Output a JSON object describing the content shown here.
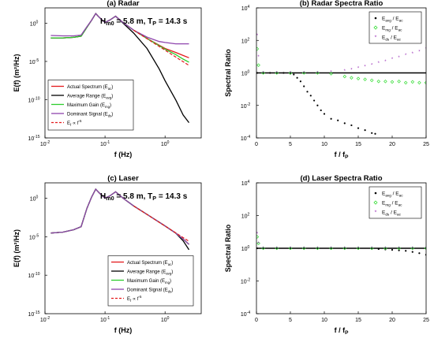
{
  "colors": {
    "actual": "#e41a1c",
    "average": "#000000",
    "max_gain": "#2ecc2e",
    "dominant": "#8e44ad",
    "f_minus5": "#e41a1c",
    "ref_line": "#000000",
    "ratio_avg": "#000000",
    "ratio_mg": "#33dd33",
    "ratio_ds": "#9b30b8"
  },
  "chart_data": [
    {
      "panel": "a",
      "type": "line",
      "title": "(a) Radar",
      "annotation": {
        "Hm0_value": "5.8 m",
        "Tp_value": "14.3 s"
      },
      "xlabel": "f (Hz)",
      "ylabel": "E(f) (m²/Hz)",
      "xscale": "log",
      "yscale": "log",
      "xlim": [
        0.01,
        4
      ],
      "ylim": [
        1e-15,
        100
      ],
      "xticks": [
        "10",
        "10",
        "10"
      ],
      "xtick_exponents": [
        "-2",
        "-1",
        "0"
      ],
      "yticks": [
        "10",
        "10",
        "10",
        "10"
      ],
      "ytick_exponents": [
        "-15",
        "-10",
        "-5",
        "0"
      ],
      "legend_position": "lower-left",
      "legend": [
        {
          "main": "Actual Spectrum (E",
          "sub": "ac",
          "end": ")"
        },
        {
          "main": "Average Range (E",
          "sub": "avg",
          "end": ")"
        },
        {
          "main": "Maximum Gain (E",
          "sub": "mg",
          "end": ")"
        },
        {
          "main": "Dominant Signal (E",
          "sub": "ds",
          "end": ")"
        },
        {
          "main": "E",
          "sub": "f",
          "end": " ∝ f",
          "sup": "-5"
        }
      ],
      "series": [
        {
          "name": "Actual Spectrum (Eac)",
          "x": [
            0.0125,
            0.02,
            0.03,
            0.04,
            0.05,
            0.06,
            0.07,
            0.08,
            0.1,
            0.12,
            0.15,
            0.2,
            0.3,
            0.5,
            1.0,
            1.5,
            2.0,
            2.5
          ],
          "y": [
            0.012,
            0.012,
            0.014,
            0.02,
            0.3,
            2.5,
            18,
            6,
            1.2,
            2.5,
            8,
            1.2,
            0.12,
            0.01,
            0.0005,
            0.00015,
            6e-05,
            3e-05
          ]
        },
        {
          "name": "Average Range (Eavg)",
          "x": [
            0.0125,
            0.02,
            0.03,
            0.04,
            0.05,
            0.06,
            0.07,
            0.08,
            0.1,
            0.12,
            0.15,
            0.2,
            0.3,
            0.5,
            0.8,
            1.0,
            1.5,
            2.0,
            2.5
          ],
          "y": [
            0.012,
            0.012,
            0.014,
            0.02,
            0.3,
            2.5,
            18,
            6,
            1.2,
            2.5,
            8,
            1.0,
            0.05,
            0.0005,
            1e-06,
            3e-08,
            1e-10,
            1e-12,
            1e-13
          ]
        },
        {
          "name": "Maximum Gain (Emg)",
          "x": [
            0.0125,
            0.02,
            0.03,
            0.04,
            0.05,
            0.06,
            0.07,
            0.08,
            0.1,
            0.12,
            0.15,
            0.2,
            0.3,
            0.5,
            1.0,
            1.5,
            2.0,
            2.5
          ],
          "y": [
            0.012,
            0.012,
            0.014,
            0.02,
            0.3,
            2.5,
            18,
            6,
            1.2,
            2.5,
            8,
            1.2,
            0.12,
            0.01,
            0.0004,
            8e-05,
            2e-05,
            8e-06
          ]
        },
        {
          "name": "Dominant Signal (Eds)",
          "x": [
            0.0125,
            0.02,
            0.03,
            0.04,
            0.05,
            0.06,
            0.07,
            0.08,
            0.1,
            0.12,
            0.15,
            0.2,
            0.3,
            0.5,
            0.8,
            1.0,
            1.5,
            2.0,
            2.5
          ],
          "y": [
            0.025,
            0.022,
            0.022,
            0.028,
            0.35,
            2.5,
            18,
            6,
            1.2,
            2.5,
            8,
            1.2,
            0.12,
            0.015,
            0.004,
            0.003,
            0.002,
            0.002,
            0.002
          ]
        },
        {
          "name": "Ef ∝ f^-5",
          "dashed": true,
          "x": [
            0.3,
            0.5,
            1.0,
            1.5,
            2.0,
            2.5
          ],
          "y": [
            0.12,
            0.0093,
            0.00029,
            3.8e-05,
            9.1e-06,
            3e-06
          ]
        }
      ]
    },
    {
      "panel": "b",
      "type": "scatter",
      "title": "(b) Radar Spectra Ratio",
      "xlabel": "f / f",
      "xlabel_sub": "P",
      "ylabel": "Spectral Ratio",
      "yscale": "log",
      "xlim": [
        0,
        25
      ],
      "ylim": [
        0.0001,
        10000.0
      ],
      "xticks": [
        0,
        5,
        10,
        15,
        20,
        25
      ],
      "yticks": [
        "10",
        "10",
        "10",
        "10",
        "10"
      ],
      "ytick_exponents": [
        "-4",
        "-2",
        "0",
        "2",
        "4"
      ],
      "legend_position": "top-right",
      "legend": [
        {
          "main": "E",
          "sub": "avg",
          "end": " / E",
          "sub2": "ac"
        },
        {
          "main": "E",
          "sub": "mg",
          "end": " / E",
          "sub2": "ac"
        },
        {
          "main": "E",
          "sub": "ds",
          "end": " / E",
          "sub2": "ac"
        }
      ],
      "reference_line": 1,
      "series": [
        {
          "name": "Eavg / Eac",
          "x": [
            0.1,
            1,
            2,
            3,
            4,
            5,
            5.5,
            6,
            6.5,
            7,
            7.5,
            8,
            8.5,
            9,
            9.5,
            10,
            11,
            12,
            13,
            14,
            15,
            16,
            17,
            17.5
          ],
          "y": [
            1,
            1,
            1,
            1,
            1,
            0.9,
            0.8,
            0.5,
            0.3,
            0.15,
            0.07,
            0.04,
            0.02,
            0.01,
            0.005,
            0.003,
            0.0015,
            0.0012,
            0.0008,
            0.0006,
            0.0004,
            0.0003,
            0.0002,
            0.00018
          ]
        },
        {
          "name": "Emg / Eac",
          "x": [
            0.1,
            0.3,
            1,
            3,
            5,
            7,
            9,
            11,
            13,
            14,
            15,
            16,
            17,
            18,
            19,
            20,
            21,
            22,
            23,
            24,
            25
          ],
          "y": [
            30,
            3,
            1,
            1,
            1,
            1,
            1,
            0.9,
            0.6,
            0.5,
            0.45,
            0.4,
            0.35,
            0.3,
            0.3,
            0.28,
            0.3,
            0.25,
            0.28,
            0.25,
            0.25
          ]
        },
        {
          "name": "Eds / Eac",
          "x": [
            0.1,
            0.3,
            1,
            3,
            5,
            7,
            9,
            11,
            13,
            14,
            15,
            16,
            17,
            18,
            19,
            20,
            21,
            22,
            23,
            24,
            25
          ],
          "y": [
            200,
            10,
            1,
            1,
            1,
            1,
            1,
            1.1,
            1.3,
            1.6,
            2,
            2.5,
            3,
            4,
            5,
            7,
            9,
            12,
            15,
            20,
            30
          ]
        }
      ]
    },
    {
      "panel": "c",
      "type": "line",
      "title": "(c) Laser",
      "annotation": {
        "Hm0_value": "5.8 m",
        "Tp_value": "14.3 s"
      },
      "xlabel": "f (Hz)",
      "ylabel": "E(f) (m²/Hz)",
      "xscale": "log",
      "yscale": "log",
      "xlim": [
        0.01,
        4
      ],
      "ylim": [
        1e-15,
        100
      ],
      "xticks": [
        "10",
        "10",
        "10"
      ],
      "xtick_exponents": [
        "-2",
        "-1",
        "0"
      ],
      "yticks": [
        "10",
        "10",
        "10",
        "10"
      ],
      "ytick_exponents": [
        "-15",
        "-10",
        "-5",
        "0"
      ],
      "legend_position": "lower-right",
      "legend": [
        {
          "main": "Actual Spectrum (E",
          "sub": "ac",
          "end": ")"
        },
        {
          "main": "Average Range (E",
          "sub": "avg",
          "end": ")"
        },
        {
          "main": "Maximum Gain (E",
          "sub": "mg",
          "end": ")"
        },
        {
          "main": "Dominant Signal (E",
          "sub": "ds",
          "end": ")"
        },
        {
          "main": "E",
          "sub": "f",
          "end": " ∝ f",
          "sup": "-5"
        }
      ],
      "series": [
        {
          "name": "Actual Spectrum (Eac)",
          "x": [
            0.0125,
            0.02,
            0.03,
            0.04,
            0.05,
            0.06,
            0.07,
            0.08,
            0.1,
            0.12,
            0.15,
            0.2,
            0.3,
            0.5,
            1.0,
            1.5,
            2.0,
            2.5
          ],
          "y": [
            3e-05,
            4e-05,
            8e-05,
            0.0002,
            0.05,
            1.5,
            15,
            5,
            1,
            2,
            7,
            1,
            0.1,
            0.008,
            0.00025,
            3e-05,
            5e-06,
            1e-06
          ]
        },
        {
          "name": "Average Range (Eavg)",
          "x": [
            0.0125,
            0.02,
            0.03,
            0.04,
            0.05,
            0.06,
            0.07,
            0.08,
            0.1,
            0.12,
            0.15,
            0.2,
            0.3,
            0.5,
            1.0,
            1.5,
            2.0,
            2.5
          ],
          "y": [
            3e-05,
            4e-05,
            8e-05,
            0.0002,
            0.05,
            1.5,
            15,
            5,
            1,
            2,
            7,
            1,
            0.1,
            0.008,
            0.00025,
            3e-05,
            3e-06,
            2e-07
          ]
        },
        {
          "name": "Maximum Gain (Emg)",
          "x": [
            0.0125,
            0.02,
            0.03,
            0.04,
            0.05,
            0.06,
            0.07,
            0.08,
            0.1,
            0.12,
            0.15,
            0.2,
            0.3,
            0.5,
            1.0,
            1.5,
            2.0,
            2.5
          ],
          "y": [
            3e-05,
            4e-05,
            8e-05,
            0.0002,
            0.05,
            1.5,
            15,
            5,
            1,
            2,
            7,
            1,
            0.1,
            0.008,
            0.00025,
            3e-05,
            5e-06,
            1e-06
          ]
        },
        {
          "name": "Dominant Signal (Eds)",
          "x": [
            0.0125,
            0.02,
            0.03,
            0.04,
            0.05,
            0.06,
            0.07,
            0.08,
            0.1,
            0.12,
            0.15,
            0.2,
            0.3,
            0.5,
            1.0,
            1.5,
            2.0,
            2.5
          ],
          "y": [
            3e-05,
            4e-05,
            8e-05,
            0.0002,
            0.05,
            1.5,
            15,
            5,
            1,
            2,
            7,
            1,
            0.1,
            0.008,
            0.00025,
            3e-05,
            5e-06,
            1e-06
          ]
        },
        {
          "name": "Ef ∝ f^-5",
          "dashed": true,
          "x": [
            0.3,
            0.5,
            1.0,
            1.5,
            2.0,
            2.5
          ],
          "y": [
            0.1,
            0.0078,
            0.00024,
            3.2e-05,
            7.6e-06,
            2.5e-06
          ]
        }
      ]
    },
    {
      "panel": "d",
      "type": "scatter",
      "title": "(d) Laser Spectra Ratio",
      "xlabel": "f / f",
      "xlabel_sub": "P",
      "ylabel": "Spectral Ratio",
      "yscale": "log",
      "xlim": [
        0,
        25
      ],
      "ylim": [
        0.0001,
        10000.0
      ],
      "xticks": [
        0,
        5,
        10,
        15,
        20,
        25
      ],
      "yticks": [
        "10",
        "10",
        "10",
        "10",
        "10"
      ],
      "ytick_exponents": [
        "-4",
        "-2",
        "0",
        "2",
        "4"
      ],
      "legend_position": "top-right",
      "legend": [
        {
          "main": "E",
          "sub": "avg",
          "end": " / E",
          "sub2": "ac"
        },
        {
          "main": "E",
          "sub": "mg",
          "end": " / E",
          "sub2": "ac"
        },
        {
          "main": "E",
          "sub": "ds",
          "end": " / E",
          "sub2": "ac"
        }
      ],
      "reference_line": 1,
      "series": [
        {
          "name": "Eavg / Eac",
          "x": [
            0.1,
            1,
            3,
            5,
            7,
            9,
            11,
            13,
            15,
            17,
            18,
            19,
            20,
            21,
            22,
            23,
            24,
            25
          ],
          "y": [
            1,
            1,
            1,
            1,
            1,
            1,
            1,
            1,
            1,
            0.95,
            0.9,
            0.85,
            0.8,
            0.75,
            0.7,
            0.6,
            0.5,
            0.4
          ]
        },
        {
          "name": "Emg / Eac",
          "x": [
            0.1,
            0.3,
            1,
            3,
            5,
            7,
            9,
            11,
            13,
            15,
            17,
            19,
            21,
            23,
            25
          ],
          "y": [
            5,
            2,
            1,
            1,
            1,
            1,
            1,
            1,
            1,
            1,
            1,
            1,
            1,
            1,
            1
          ]
        },
        {
          "name": "Eds / Eac",
          "x": [
            0.1,
            0.3,
            1,
            3,
            5,
            7,
            9,
            11,
            13,
            15,
            17,
            19,
            21,
            23,
            25
          ],
          "y": [
            8,
            2,
            1,
            1,
            1,
            1,
            1,
            1,
            1,
            1,
            1,
            1,
            1,
            1,
            1
          ]
        }
      ]
    }
  ]
}
